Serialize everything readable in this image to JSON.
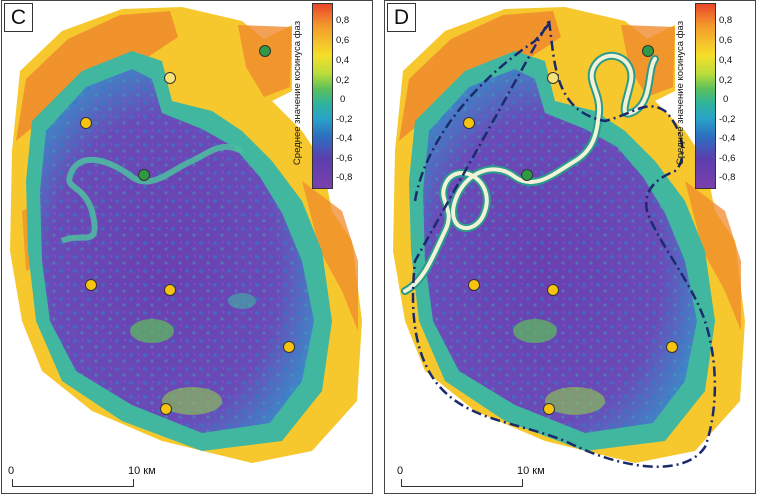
{
  "panels": [
    {
      "letter": "C"
    },
    {
      "letter": "D"
    }
  ],
  "legend": {
    "title": "Среднее значение косинуса фаз",
    "ticks": [
      "0,8",
      "0,6",
      "0,4",
      "0,2",
      "0",
      "-0,2",
      "-0,4",
      "-0,6",
      "-0,8"
    ]
  },
  "scale": {
    "start": "0",
    "end": "10 км"
  },
  "colors": {
    "high": "#e8452b",
    "mid": "#5cc15a",
    "low": "#6a3fae",
    "outline": "#1a2a6c",
    "channel": "#2a9c8c"
  }
}
